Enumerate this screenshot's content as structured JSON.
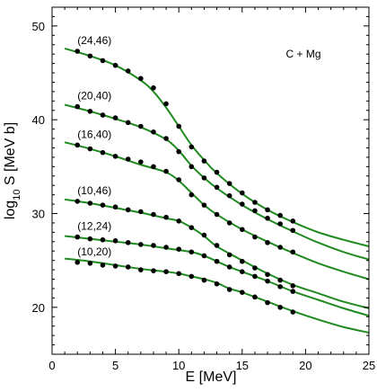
{
  "chart_data": {
    "type": "line",
    "xlabel": "E [MeV]",
    "ylabel": "log10 S [MeV b]",
    "ylabel_parts": {
      "pre": "log",
      "sub": "10",
      "post": " S [MeV b]"
    },
    "xlim": [
      0,
      25
    ],
    "ylim": [
      15,
      52
    ],
    "xticks": [
      0,
      5,
      10,
      15,
      20,
      25
    ],
    "yticks": [
      20,
      30,
      40,
      50
    ],
    "grid": false,
    "annotation": "C + Mg",
    "line_color": "#1f8a1f",
    "point_color": "#000000",
    "series": [
      {
        "name": "(24,46)",
        "curve": [
          [
            1,
            47.6
          ],
          [
            3,
            46.8
          ],
          [
            5,
            45.8
          ],
          [
            7,
            44.2
          ],
          [
            8,
            43.0
          ],
          [
            9,
            41.3
          ],
          [
            10,
            39.3
          ],
          [
            11,
            37.3
          ],
          [
            12,
            35.7
          ],
          [
            13,
            34.3
          ],
          [
            15,
            32.1
          ],
          [
            17,
            30.4
          ],
          [
            19,
            29.1
          ],
          [
            21,
            28.0
          ],
          [
            23,
            27.2
          ],
          [
            25,
            26.5
          ]
        ],
        "points": [
          [
            2,
            47.3
          ],
          [
            3,
            46.8
          ],
          [
            4,
            46.3
          ],
          [
            5,
            45.8
          ],
          [
            6,
            45.2
          ],
          [
            7,
            44.4
          ],
          [
            8,
            43.4
          ],
          [
            9,
            41.7
          ],
          [
            10,
            39.3
          ],
          [
            11,
            37.1
          ],
          [
            12,
            35.6
          ],
          [
            13,
            34.4
          ],
          [
            14,
            33.2
          ],
          [
            15,
            32.2
          ],
          [
            16,
            31.2
          ],
          [
            17,
            30.4
          ],
          [
            18,
            29.8
          ],
          [
            19,
            29.2
          ]
        ]
      },
      {
        "name": "(20,40)",
        "curve": [
          [
            1,
            41.6
          ],
          [
            3,
            40.9
          ],
          [
            5,
            40.1
          ],
          [
            7,
            39.2
          ],
          [
            9,
            37.9
          ],
          [
            10,
            36.7
          ],
          [
            11,
            35.1
          ],
          [
            12,
            33.8
          ],
          [
            13,
            32.7
          ],
          [
            15,
            30.9
          ],
          [
            17,
            29.4
          ],
          [
            19,
            28.1
          ],
          [
            21,
            26.9
          ],
          [
            23,
            25.9
          ],
          [
            25,
            25.1
          ]
        ],
        "points": [
          [
            2,
            41.4
          ],
          [
            3,
            40.9
          ],
          [
            4,
            40.5
          ],
          [
            5,
            40.2
          ],
          [
            6,
            39.7
          ],
          [
            7,
            39.3
          ],
          [
            8,
            38.7
          ],
          [
            9,
            38.0
          ],
          [
            10,
            36.6
          ],
          [
            11,
            35.0
          ],
          [
            12,
            33.8
          ],
          [
            13,
            32.8
          ],
          [
            14,
            31.9
          ],
          [
            15,
            31.0
          ],
          [
            16,
            30.3
          ],
          [
            17,
            29.5
          ],
          [
            18,
            28.9
          ],
          [
            19,
            28.2
          ]
        ]
      },
      {
        "name": "(16,40)",
        "curve": [
          [
            1,
            37.6
          ],
          [
            3,
            36.9
          ],
          [
            5,
            36.1
          ],
          [
            7,
            35.2
          ],
          [
            9,
            34.4
          ],
          [
            10,
            33.5
          ],
          [
            11,
            32.2
          ],
          [
            12,
            30.9
          ],
          [
            13,
            29.9
          ],
          [
            15,
            28.3
          ],
          [
            17,
            27.0
          ],
          [
            19,
            25.8
          ],
          [
            21,
            24.7
          ],
          [
            23,
            23.8
          ],
          [
            25,
            23.0
          ]
        ],
        "points": [
          [
            2,
            37.3
          ],
          [
            3,
            36.9
          ],
          [
            4,
            36.5
          ],
          [
            5,
            36.1
          ],
          [
            6,
            35.8
          ],
          [
            7,
            35.5
          ],
          [
            8,
            35.0
          ],
          [
            9,
            34.5
          ],
          [
            10,
            33.6
          ],
          [
            11,
            32.0
          ],
          [
            12,
            30.9
          ],
          [
            13,
            29.9
          ],
          [
            14,
            29.0
          ],
          [
            15,
            28.3
          ],
          [
            16,
            27.5
          ],
          [
            17,
            26.9
          ],
          [
            18,
            26.4
          ],
          [
            19,
            25.9
          ]
        ]
      },
      {
        "name": "(10,46)",
        "curve": [
          [
            1,
            31.5
          ],
          [
            3,
            31.1
          ],
          [
            5,
            30.6
          ],
          [
            7,
            30.1
          ],
          [
            9,
            29.5
          ],
          [
            10,
            29.2
          ],
          [
            11,
            28.5
          ],
          [
            12,
            27.6
          ],
          [
            13,
            26.5
          ],
          [
            15,
            25.0
          ],
          [
            17,
            23.6
          ],
          [
            19,
            22.4
          ],
          [
            21,
            21.5
          ],
          [
            23,
            20.6
          ],
          [
            25,
            19.9
          ]
        ],
        "points": [
          [
            2,
            31.3
          ],
          [
            3,
            31.1
          ],
          [
            4,
            30.9
          ],
          [
            5,
            30.7
          ],
          [
            6,
            30.4
          ],
          [
            7,
            30.2
          ],
          [
            8,
            29.9
          ],
          [
            9,
            29.6
          ],
          [
            10,
            29.2
          ],
          [
            11,
            28.5
          ],
          [
            12,
            27.7
          ],
          [
            13,
            26.6
          ],
          [
            14,
            25.6
          ],
          [
            15,
            24.9
          ],
          [
            16,
            24.2
          ],
          [
            17,
            23.5
          ],
          [
            18,
            22.9
          ],
          [
            19,
            22.3
          ]
        ]
      },
      {
        "name": "(12,24)",
        "curve": [
          [
            1,
            27.6
          ],
          [
            3,
            27.3
          ],
          [
            5,
            27.0
          ],
          [
            7,
            26.7
          ],
          [
            9,
            26.3
          ],
          [
            11,
            25.9
          ],
          [
            12,
            25.5
          ],
          [
            13,
            24.9
          ],
          [
            14,
            24.3
          ],
          [
            15,
            23.8
          ],
          [
            17,
            22.8
          ],
          [
            19,
            21.7
          ],
          [
            21,
            20.8
          ],
          [
            23,
            19.9
          ],
          [
            25,
            19.1
          ]
        ],
        "points": [
          [
            2,
            27.5
          ],
          [
            3,
            27.3
          ],
          [
            4,
            27.2
          ],
          [
            5,
            27.1
          ],
          [
            6,
            26.9
          ],
          [
            7,
            26.7
          ],
          [
            8,
            26.6
          ],
          [
            9,
            26.4
          ],
          [
            10,
            26.2
          ],
          [
            11,
            25.9
          ],
          [
            12,
            25.5
          ],
          [
            13,
            24.9
          ],
          [
            14,
            24.3
          ],
          [
            15,
            23.8
          ],
          [
            16,
            23.3
          ],
          [
            17,
            22.8
          ],
          [
            18,
            22.2
          ],
          [
            19,
            21.7
          ]
        ]
      },
      {
        "name": "(10,20)",
        "curve": [
          [
            1,
            25.2
          ],
          [
            3,
            24.9
          ],
          [
            5,
            24.5
          ],
          [
            7,
            24.1
          ],
          [
            9,
            23.8
          ],
          [
            10,
            23.6
          ],
          [
            11,
            23.3
          ],
          [
            12,
            23.0
          ],
          [
            13,
            22.6
          ],
          [
            14,
            22.0
          ],
          [
            15,
            21.6
          ],
          [
            17,
            20.6
          ],
          [
            19,
            19.6
          ],
          [
            21,
            18.7
          ],
          [
            23,
            17.9
          ],
          [
            25,
            17.3
          ]
        ],
        "points": [
          [
            2,
            24.8
          ],
          [
            3,
            24.7
          ],
          [
            4,
            24.5
          ],
          [
            5,
            24.4
          ],
          [
            6,
            24.3
          ],
          [
            7,
            24.0
          ],
          [
            8,
            23.9
          ],
          [
            9,
            23.8
          ],
          [
            10,
            23.6
          ],
          [
            11,
            23.3
          ],
          [
            12,
            22.9
          ],
          [
            13,
            22.5
          ],
          [
            14,
            21.9
          ],
          [
            15,
            21.6
          ],
          [
            16,
            21.1
          ],
          [
            17,
            20.5
          ],
          [
            18,
            20.0
          ],
          [
            19,
            19.5
          ]
        ]
      }
    ]
  }
}
